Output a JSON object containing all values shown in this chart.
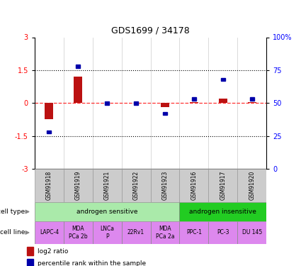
{
  "title": "GDS1699 / 34178",
  "samples": [
    "GSM91918",
    "GSM91919",
    "GSM91921",
    "GSM91922",
    "GSM91923",
    "GSM91916",
    "GSM91917",
    "GSM91920"
  ],
  "log2_ratio": [
    -0.72,
    1.2,
    0.0,
    0.0,
    -0.18,
    0.04,
    0.22,
    0.04
  ],
  "percentile_rank": [
    28,
    78,
    50,
    50,
    42,
    53,
    68,
    53
  ],
  "cell_type_groups": [
    {
      "label": "androgen sensitive",
      "start": 0,
      "end": 5,
      "color": "#aaeaaa"
    },
    {
      "label": "androgen insensitive",
      "start": 5,
      "end": 8,
      "color": "#22cc22"
    }
  ],
  "cell_lines": [
    "LAPC-4",
    "MDA\nPCa 2b",
    "LNCa\nP",
    "22Rv1",
    "MDA\nPCa 2a",
    "PPC-1",
    "PC-3",
    "DU 145"
  ],
  "cell_line_color": "#dd88ee",
  "bar_color_log2": "#bb1111",
  "bar_color_pct": "#0000aa",
  "ylim_left": [
    -3,
    3
  ],
  "ylim_right": [
    0,
    100
  ],
  "yticks_left": [
    -3,
    -1.5,
    0,
    1.5,
    3
  ],
  "yticks_right": [
    0,
    25,
    50,
    75,
    100
  ],
  "hline_dashed_values": [
    -1.5,
    1.5
  ],
  "bg_color": "#ffffff",
  "sample_box_color": "#cccccc",
  "sample_box_edge": "#999999"
}
